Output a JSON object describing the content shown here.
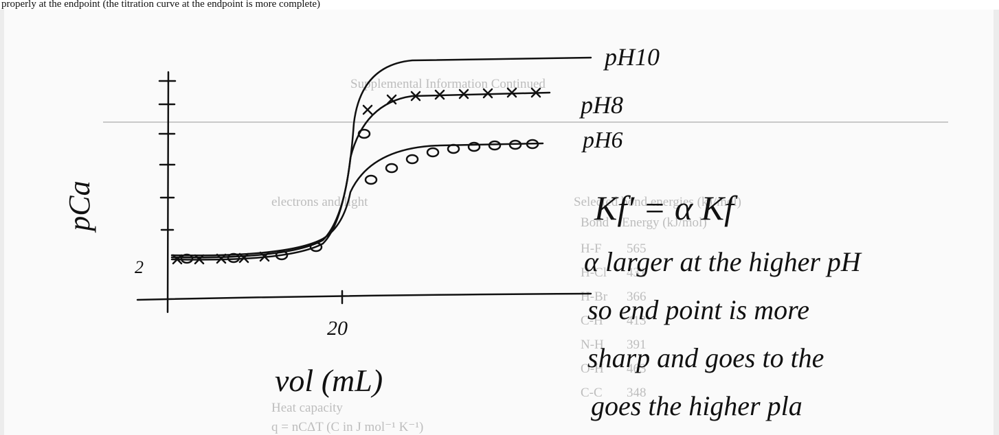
{
  "header": {
    "cut_line": "properly at the endpoint (the titration curve at the endpoint is more complete)"
  },
  "print": {
    "heading": "Supplemental Information Continued",
    "left_lines": [
      "electrons and light",
      "Heat capacity",
      "q = nCΔT (C in J mol⁻¹ K⁻¹)"
    ],
    "table_title": "Selected bond energies (kJ/mol)",
    "table_header": [
      "Bond",
      "Energy (kJ/mol)"
    ],
    "table_rows": [
      [
        "H-F",
        "565"
      ],
      [
        "H-Cl",
        "431"
      ],
      [
        "H-Br",
        "366"
      ],
      [
        "C-H",
        "413"
      ],
      [
        "N-H",
        "391"
      ],
      [
        "O-H",
        "463"
      ],
      [
        "C-C",
        "348"
      ]
    ]
  },
  "sketch": {
    "y_label": "pCa",
    "y_tick": "2",
    "x_tick": "20",
    "x_label": "vol (mL)",
    "curve_labels": [
      "pH10",
      "pH8",
      "pH6"
    ]
  },
  "notes": {
    "equation": "Kf′ = α Kf",
    "lines": [
      "α larger at the higher pH",
      "so end point is more",
      "sharp and goes to the",
      "goes the higher pla"
    ]
  }
}
